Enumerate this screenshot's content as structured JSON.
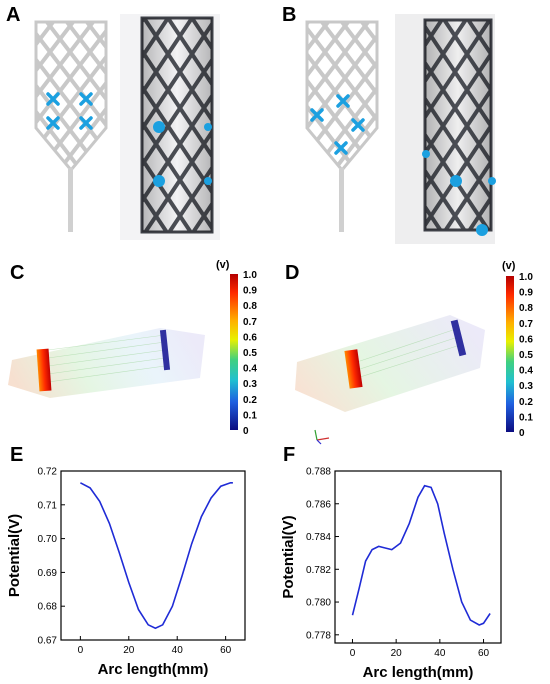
{
  "panels": {
    "a": {
      "label": "A"
    },
    "b": {
      "label": "B"
    },
    "c": {
      "label": "C",
      "unit": "(v)"
    },
    "d": {
      "label": "D",
      "unit": "(v)"
    },
    "e": {
      "label": "E"
    },
    "f": {
      "label": "F"
    }
  },
  "colorbar": {
    "ticks": [
      "1.0",
      "0.9",
      "0.8",
      "0.7",
      "0.6",
      "0.5",
      "0.4",
      "0.3",
      "0.2",
      "0.1",
      "0"
    ]
  },
  "chart_data": [
    {
      "type": "line",
      "panel": "E",
      "xlabel": "Arc length(mm)",
      "ylabel": "Potential(V)",
      "xlim": [
        -8,
        68
      ],
      "ylim": [
        0.67,
        0.72
      ],
      "xticks": [
        "0",
        "20",
        "40",
        "60"
      ],
      "yticks": [
        "0.67",
        "0.68",
        "0.69",
        "0.70",
        "0.71",
        "0.72"
      ],
      "series": [
        {
          "color": "#1f2bd6",
          "x": [
            0,
            4,
            8,
            12,
            16,
            20,
            24,
            28,
            31,
            34,
            38,
            42,
            46,
            50,
            54,
            58,
            62,
            63
          ],
          "y": [
            0.7165,
            0.715,
            0.711,
            0.7045,
            0.696,
            0.687,
            0.679,
            0.6745,
            0.6735,
            0.6745,
            0.68,
            0.689,
            0.6985,
            0.7065,
            0.712,
            0.7155,
            0.7165,
            0.7165
          ]
        }
      ]
    },
    {
      "type": "line",
      "panel": "F",
      "xlabel": "Arc length(mm)",
      "ylabel": "Potential(V)",
      "xlim": [
        -8,
        68
      ],
      "ylim": [
        0.7775,
        0.788
      ],
      "xticks": [
        "0",
        "20",
        "40",
        "60"
      ],
      "yticks": [
        "0.778",
        "0.780",
        "0.782",
        "0.784",
        "0.786",
        "0.788"
      ],
      "series": [
        {
          "color": "#1f2bd6",
          "x": [
            0,
            3,
            6,
            9,
            12,
            15,
            18,
            22,
            26,
            30,
            33,
            36,
            39,
            42,
            46,
            50,
            54,
            58,
            60,
            63
          ],
          "y": [
            0.7792,
            0.7808,
            0.7825,
            0.7832,
            0.7834,
            0.7833,
            0.7832,
            0.7836,
            0.7848,
            0.7864,
            0.7871,
            0.787,
            0.786,
            0.7842,
            0.782,
            0.78,
            0.7789,
            0.7786,
            0.7787,
            0.7793
          ]
        }
      ]
    }
  ]
}
